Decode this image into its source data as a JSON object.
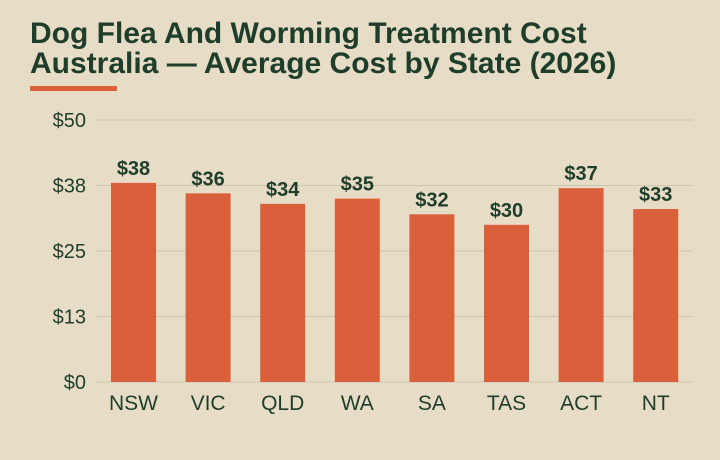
{
  "title": {
    "line1": "Dog Flea And Worming Treatment Cost",
    "line2": "Australia — Average Cost by State (2026)"
  },
  "colors": {
    "background": "#e7ddc6",
    "bar": "#d9603b",
    "title": "#1f3d2b",
    "axis_text": "#1f3d2b",
    "grid": "#cfc5ae",
    "accent": "#d9603b"
  },
  "chart_data": {
    "type": "bar",
    "title": "Dog Flea And Worming Treatment Cost Australia — Average Cost by State (2026)",
    "xlabel": "",
    "ylabel": "",
    "categories": [
      "NSW",
      "VIC",
      "QLD",
      "WA",
      "SA",
      "TAS",
      "ACT",
      "NT"
    ],
    "values": [
      38,
      36,
      34,
      35,
      32,
      30,
      37,
      33
    ],
    "value_labels": [
      "$38",
      "$36",
      "$34",
      "$35",
      "$32",
      "$30",
      "$37",
      "$33"
    ],
    "ylim": [
      0,
      50
    ],
    "yticks": [
      0,
      12.5,
      25,
      37.5,
      50
    ],
    "ytick_labels": [
      "$0",
      "$13",
      "$25",
      "$38",
      "$50"
    ],
    "grid": true,
    "legend": "none"
  }
}
